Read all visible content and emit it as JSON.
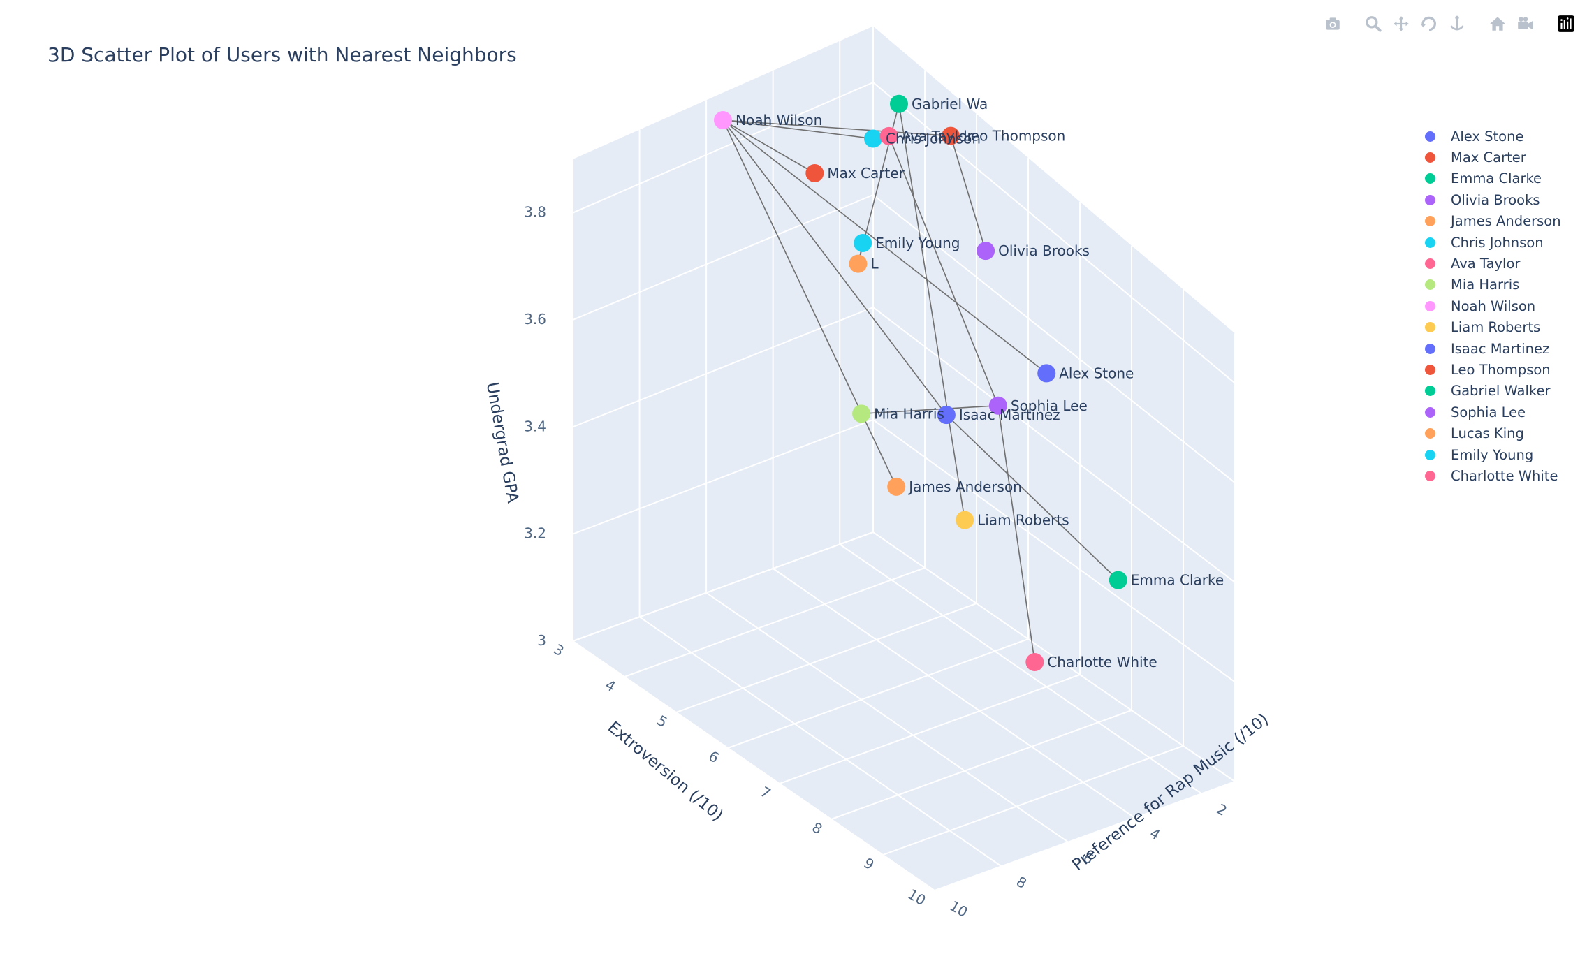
{
  "title": "3D Scatter Plot of Users with Nearest Neighbors",
  "modebar": [
    {
      "name": "camera-icon",
      "label": "Download plot as a png"
    },
    {
      "name": "zoom-icon",
      "label": "Zoom"
    },
    {
      "name": "pan-icon",
      "label": "Pan"
    },
    {
      "name": "orbit-rotate-icon",
      "label": "Orbital rotation"
    },
    {
      "name": "turntable-icon",
      "label": "Turntable rotation"
    },
    {
      "name": "home-icon",
      "label": "Reset camera to default"
    },
    {
      "name": "camera-last-save-icon",
      "label": "Reset camera to last save"
    },
    {
      "name": "plotly-logo-icon",
      "label": "Produced with Plotly"
    }
  ],
  "colors": {
    "scene_bg": "#e5ecf6",
    "grid": "#ffffff",
    "text": "#2a3f5f",
    "tick": "#506784",
    "edge": "#707070"
  },
  "chart_data": {
    "type": "scatter",
    "title": "3D Scatter Plot of Users with Nearest Neighbors",
    "axes": {
      "x": {
        "label": "Preference for Rap Music (/10)",
        "range": [
          1,
          10
        ],
        "ticks": [
          2,
          4,
          6,
          8,
          10
        ]
      },
      "y": {
        "label": "Extroversion (/10)",
        "range": [
          3,
          10
        ],
        "ticks": [
          3,
          4,
          5,
          6,
          7,
          8,
          9,
          10
        ]
      },
      "z": {
        "label": "Undergrad GPA",
        "range": [
          3.0,
          3.9
        ],
        "ticks": [
          3,
          3.2,
          3.4,
          3.6,
          3.8
        ]
      }
    },
    "grid": true,
    "legend_position": "right",
    "series": [
      {
        "name": "Alex Stone",
        "label": "Alex Stone",
        "color": "#636efa",
        "x": 2.0,
        "y": 7.0,
        "z": 3.6
      },
      {
        "name": "Max Carter",
        "label": "Max Carter",
        "color": "#EF553B",
        "x": 4.3,
        "y": 4.0,
        "z": 3.8
      },
      {
        "name": "Emma Clarke",
        "label": "Emma Clarke",
        "color": "#00cc96",
        "x": 4.5,
        "y": 10.0,
        "z": 3.5
      },
      {
        "name": "Olivia Brooks",
        "label": "Olivia Brooks",
        "color": "#ab63fa",
        "x": 1.5,
        "y": 5.5,
        "z": 3.7
      },
      {
        "name": "James Anderson",
        "label": "James Anderson",
        "color": "#FFA15A",
        "x": 6.5,
        "y": 7.0,
        "z": 3.5
      },
      {
        "name": "Chris Johnson",
        "label": "Chris Johnson",
        "color": "#19d3f3",
        "x": 1.0,
        "y": 3.0,
        "z": 3.7
      },
      {
        "name": "Ava Taylor",
        "label": "Ava Taylor",
        "color": "#FF6692",
        "x": 1.3,
        "y": 3.5,
        "z": 3.75
      },
      {
        "name": "Mia Harris",
        "label": "Mia Harris",
        "color": "#B6E880",
        "x": 6.0,
        "y": 6.0,
        "z": 3.55
      },
      {
        "name": "Noah Wilson",
        "label": "Noah Wilson",
        "color": "#FF97FF",
        "x": 5.5,
        "y": 3.0,
        "z": 3.85
      },
      {
        "name": "Liam Roberts",
        "label": "Liam Roberts",
        "color": "#FECB52",
        "x": 6.0,
        "y": 8.0,
        "z": 3.5
      },
      {
        "name": "Isaac Martinez",
        "label": "Isaac Martinez",
        "color": "#636efa",
        "x": 5.0,
        "y": 7.0,
        "z": 3.6
      },
      {
        "name": "Leo Thompson",
        "label": "Leo Thompson",
        "color": "#EF553B",
        "x": 1.0,
        "y": 4.5,
        "z": 3.82
      },
      {
        "name": "Gabriel Walker",
        "label": "Gabriel Wa",
        "color": "#00cc96",
        "x": 1.0,
        "y": 3.5,
        "z": 3.8
      },
      {
        "name": "Sophia Lee",
        "label": "Sophia Lee",
        "color": "#ab63fa",
        "x": 5.0,
        "y": 8.0,
        "z": 3.7
      },
      {
        "name": "Lucas King",
        "label": "L",
        "color": "#FFA15A",
        "x": 3.0,
        "y": 4.0,
        "z": 3.6
      },
      {
        "name": "Emily Young",
        "label": "Emily Young",
        "color": "#19d3f3",
        "x": 1.0,
        "y": 2.8,
        "z": 3.5
      },
      {
        "name": "Charlotte White",
        "label": "Charlotte White",
        "color": "#FF6692",
        "x": 7.0,
        "y": 10.0,
        "z": 3.4
      }
    ],
    "edges": [
      [
        "Noah Wilson",
        "Max Carter"
      ],
      [
        "Noah Wilson",
        "Leo Thompson"
      ],
      [
        "Noah Wilson",
        "Chris Johnson"
      ],
      [
        "Noah Wilson",
        "Alex Stone"
      ],
      [
        "Noah Wilson",
        "Isaac Martinez"
      ],
      [
        "Noah Wilson",
        "James Anderson"
      ],
      [
        "Leo Thompson",
        "Olivia Brooks"
      ],
      [
        "Gabriel Walker",
        "Lucas King"
      ],
      [
        "Gabriel Walker",
        "Liam Roberts"
      ],
      [
        "Ava Taylor",
        "Sophia Lee"
      ],
      [
        "Lucas King",
        "Emily Young"
      ],
      [
        "Mia Harris",
        "Sophia Lee"
      ],
      [
        "Isaac Martinez",
        "Emma Clarke"
      ],
      [
        "Sophia Lee",
        "Charlotte White"
      ]
    ]
  }
}
